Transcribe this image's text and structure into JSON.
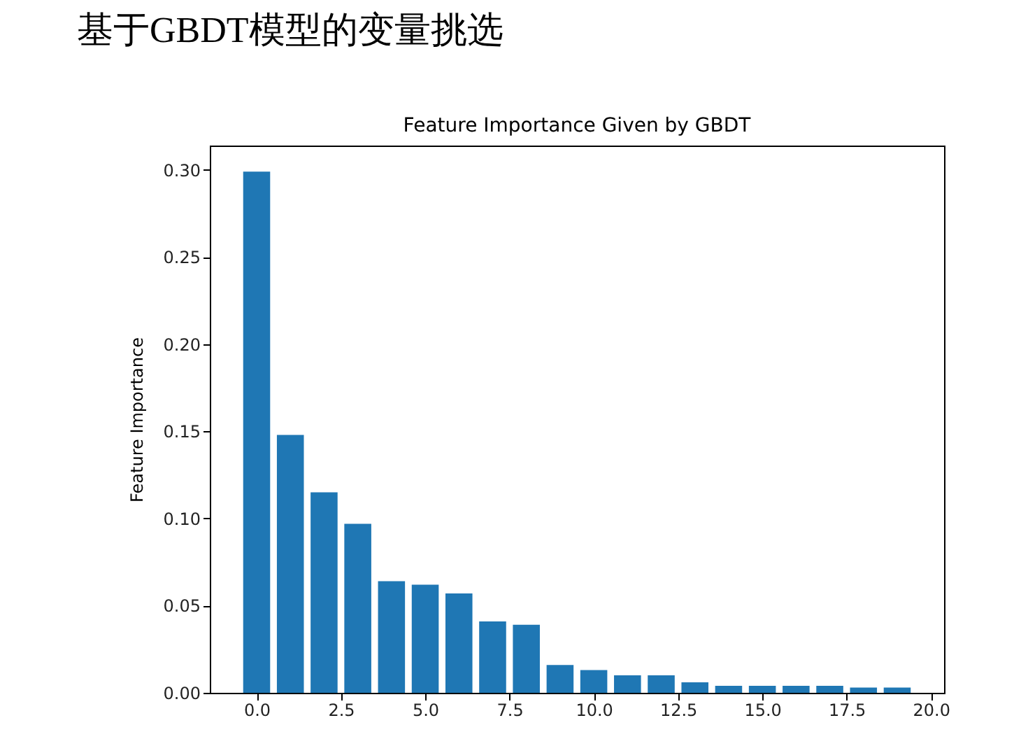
{
  "chart_data": {
    "type": "bar",
    "title": "Feature Importance Given by GBDT",
    "ylabel": "Feature Importance",
    "annotations": [
      "基于GBDT模型的变量挑选"
    ],
    "x": [
      0,
      1,
      2,
      3,
      4,
      5,
      6,
      7,
      8,
      9,
      10,
      11,
      12,
      13,
      14,
      15,
      16,
      17,
      18,
      19
    ],
    "values": [
      0.299,
      0.148,
      0.115,
      0.097,
      0.064,
      0.062,
      0.057,
      0.041,
      0.039,
      0.016,
      0.013,
      0.01,
      0.01,
      0.006,
      0.004,
      0.004,
      0.004,
      0.004,
      0.003,
      0.003
    ],
    "color": "#1f77b4",
    "xlim": [
      -1.39,
      20.39
    ],
    "xticks": [
      {
        "value": 0,
        "label": "0.0"
      },
      {
        "value": 2.5,
        "label": "2.5"
      },
      {
        "value": 5,
        "label": "5.0"
      },
      {
        "value": 7.5,
        "label": "7.5"
      },
      {
        "value": 10,
        "label": "10.0"
      },
      {
        "value": 12.5,
        "label": "12.5"
      },
      {
        "value": 15,
        "label": "15.0"
      },
      {
        "value": 17.5,
        "label": "17.5"
      },
      {
        "value": 20,
        "label": "20.0"
      }
    ],
    "ylim": [
      0,
      0.314
    ],
    "yticks": [
      {
        "value": 0,
        "label": "0.00"
      },
      {
        "value": 0.05,
        "label": "0.05"
      },
      {
        "value": 0.1,
        "label": "0.10"
      },
      {
        "value": 0.15,
        "label": "0.15"
      },
      {
        "value": 0.2,
        "label": "0.20"
      },
      {
        "value": 0.25,
        "label": "0.25"
      },
      {
        "value": 0.3,
        "label": "0.30"
      }
    ],
    "grid": false
  }
}
